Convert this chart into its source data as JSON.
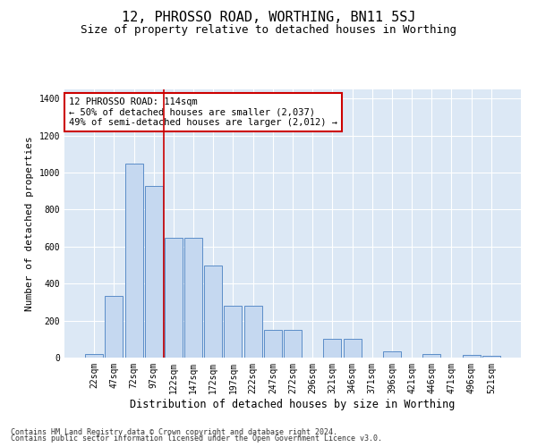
{
  "title": "12, PHROSSO ROAD, WORTHING, BN11 5SJ",
  "subtitle": "Size of property relative to detached houses in Worthing",
  "xlabel": "Distribution of detached houses by size in Worthing",
  "ylabel": "Number of detached properties",
  "footnote1": "Contains HM Land Registry data © Crown copyright and database right 2024.",
  "footnote2": "Contains public sector information licensed under the Open Government Licence v3.0.",
  "bar_labels": [
    "22sqm",
    "47sqm",
    "72sqm",
    "97sqm",
    "122sqm",
    "147sqm",
    "172sqm",
    "197sqm",
    "222sqm",
    "247sqm",
    "272sqm",
    "296sqm",
    "321sqm",
    "346sqm",
    "371sqm",
    "396sqm",
    "421sqm",
    "446sqm",
    "471sqm",
    "496sqm",
    "521sqm"
  ],
  "bar_values": [
    20,
    335,
    1050,
    930,
    650,
    650,
    500,
    280,
    280,
    150,
    150,
    0,
    100,
    100,
    0,
    35,
    0,
    20,
    0,
    15,
    8
  ],
  "bar_color": "#c5d8f0",
  "bar_edge_color": "#5b8dc8",
  "background_color": "#dce8f5",
  "vline_x": 3.5,
  "vline_color": "#cc0000",
  "annotation_text": "12 PHROSSO ROAD: 114sqm\n← 50% of detached houses are smaller (2,037)\n49% of semi-detached houses are larger (2,012) →",
  "annotation_box_facecolor": "white",
  "annotation_box_edgecolor": "#cc0000",
  "ylim": [
    0,
    1450
  ],
  "yticks": [
    0,
    200,
    400,
    600,
    800,
    1000,
    1200,
    1400
  ],
  "title_fontsize": 11,
  "subtitle_fontsize": 9,
  "xlabel_fontsize": 8.5,
  "ylabel_fontsize": 8,
  "tick_fontsize": 7,
  "annot_fontsize": 7.5,
  "footnote_fontsize": 6
}
